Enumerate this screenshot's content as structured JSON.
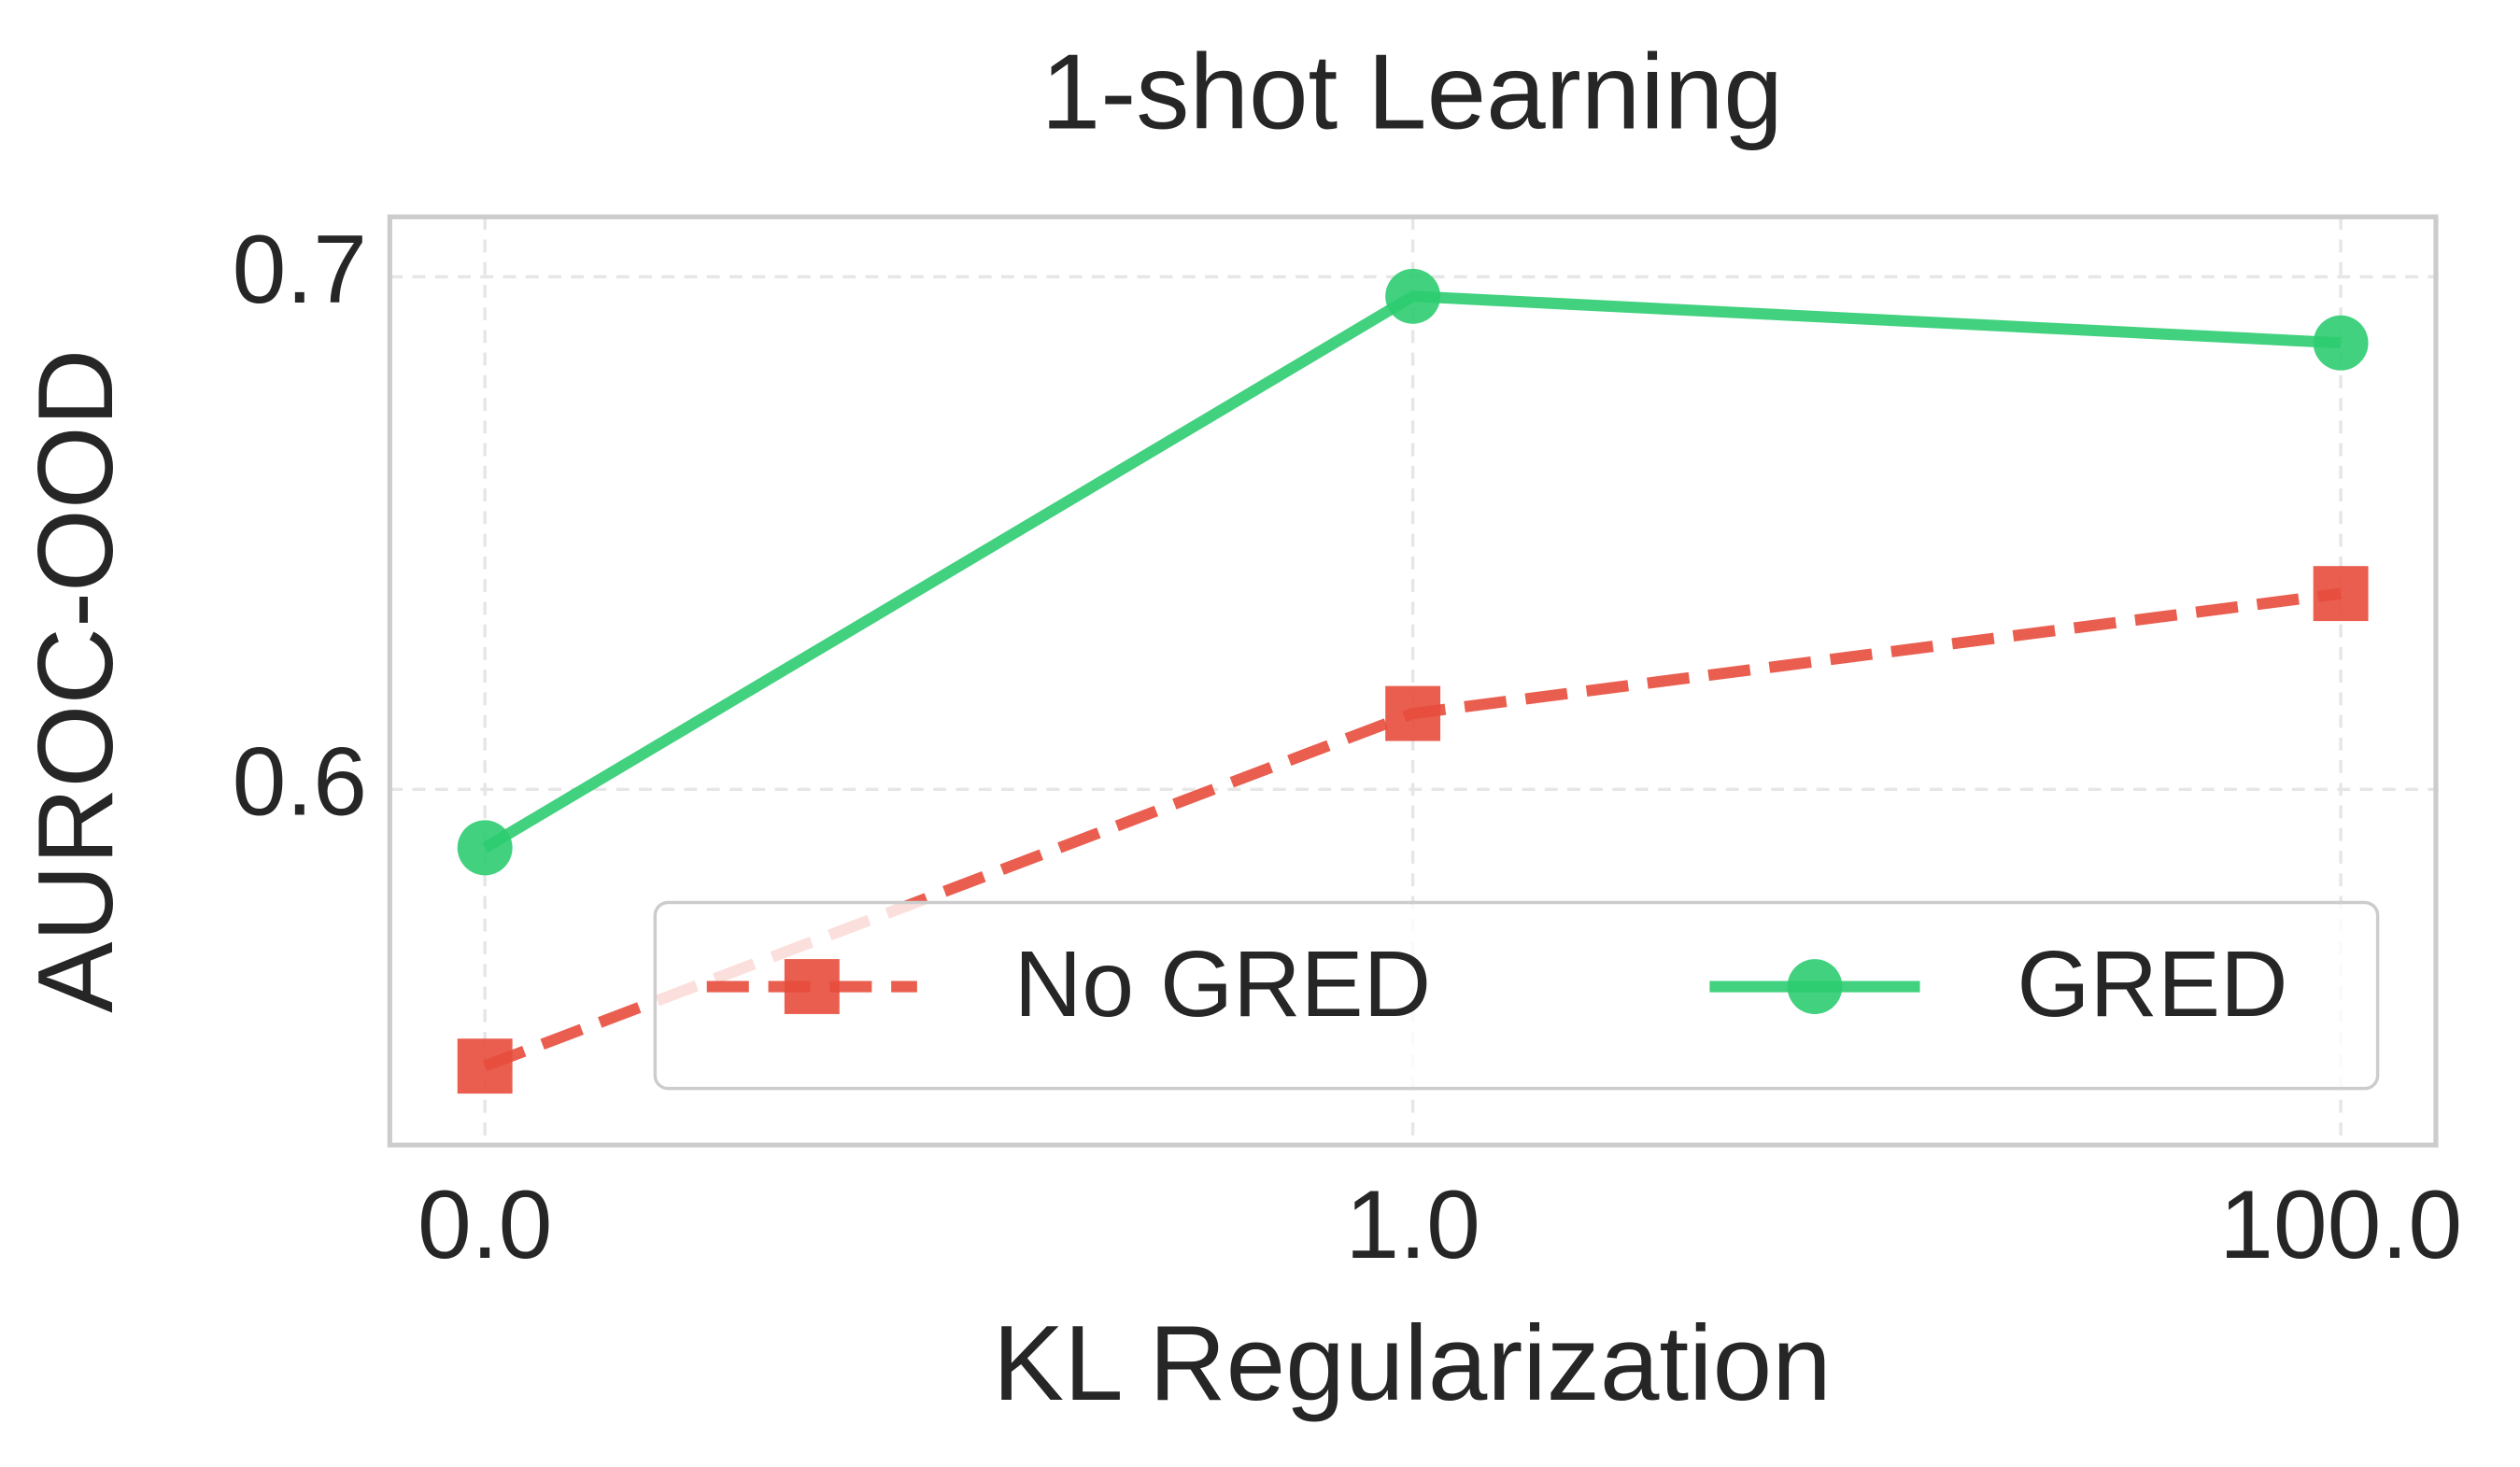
{
  "chart_data": {
    "type": "line",
    "title": "1-shot Learning",
    "x_label": "KL Regularization",
    "y_label": "AUROC-OOD",
    "categories": [
      "0.0",
      "1.0",
      "100.0"
    ],
    "series": [
      {
        "name": "No GRED",
        "color": "#e74c3c",
        "linestyle": "dashed",
        "marker": "square",
        "values": [
          0.546,
          0.6148,
          0.6382
        ]
      },
      {
        "name": "GRED",
        "color": "#2ecc71",
        "linestyle": "solid",
        "marker": "circle",
        "values": [
          0.5886,
          0.6962,
          0.6871
        ]
      }
    ],
    "ylim": [
      0.5306,
      0.7117
    ],
    "yticks": [
      0.6,
      0.7
    ],
    "grid": true,
    "legend": "lower right"
  }
}
